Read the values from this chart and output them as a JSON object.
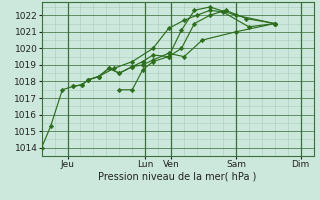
{
  "background_color": "#cce8dc",
  "grid_color": "#aaccbb",
  "grid_major_color": "#3a6e3a",
  "line_color": "#2d6e1e",
  "marker_color": "#2d6e1e",
  "xlabel": "Pression niveau de la mer( hPa )",
  "ylim": [
    1013.5,
    1022.8
  ],
  "xlim": [
    0,
    10.5
  ],
  "yticks": [
    1014,
    1015,
    1016,
    1017,
    1018,
    1019,
    1020,
    1021,
    1022
  ],
  "day_lines": [
    1.0,
    4.0,
    5.0,
    7.5,
    10.0
  ],
  "xtick_positions": [
    1.0,
    4.0,
    5.0,
    7.5,
    10.0
  ],
  "xtick_labels": [
    "Jeu",
    "Lun",
    "Ven",
    "Sam",
    "Dim"
  ],
  "series_x": [
    [
      0.0,
      0.35,
      0.8,
      1.2,
      1.55,
      1.8,
      2.2,
      2.8,
      3.5,
      4.3,
      4.9,
      5.5,
      6.0,
      6.5,
      7.0,
      8.0,
      9.0
    ],
    [
      1.2,
      1.55,
      1.8,
      2.2,
      2.6,
      3.0,
      3.5,
      3.9,
      4.3,
      4.9,
      5.5,
      6.2,
      7.5,
      9.0
    ],
    [
      1.8,
      2.2,
      2.6,
      3.0,
      3.5,
      3.9,
      4.3,
      4.9,
      5.4,
      5.9,
      6.5,
      7.5,
      9.0
    ],
    [
      3.0,
      3.5,
      3.9,
      4.3,
      4.9,
      5.4,
      5.9,
      6.5,
      7.1,
      7.9,
      9.0
    ]
  ],
  "series_y": [
    [
      1014.0,
      1015.3,
      1017.5,
      1017.7,
      1017.8,
      1018.1,
      1018.3,
      1018.8,
      1019.2,
      1020.0,
      1021.2,
      1021.7,
      1022.0,
      1022.3,
      1022.2,
      1021.3,
      1021.5
    ],
    [
      1017.7,
      1017.8,
      1018.1,
      1018.3,
      1018.8,
      1018.5,
      1018.9,
      1019.0,
      1019.3,
      1019.7,
      1019.5,
      1020.5,
      1021.0,
      1021.5
    ],
    [
      1018.1,
      1018.3,
      1018.8,
      1018.5,
      1018.9,
      1019.2,
      1019.6,
      1019.5,
      1021.1,
      1022.3,
      1022.5,
      1022.0,
      1021.5
    ],
    [
      1017.5,
      1017.5,
      1018.7,
      1019.2,
      1019.5,
      1020.0,
      1021.5,
      1022.0,
      1022.3,
      1021.8,
      1021.5
    ]
  ],
  "axis_fontsize": 7,
  "tick_fontsize": 6.5
}
